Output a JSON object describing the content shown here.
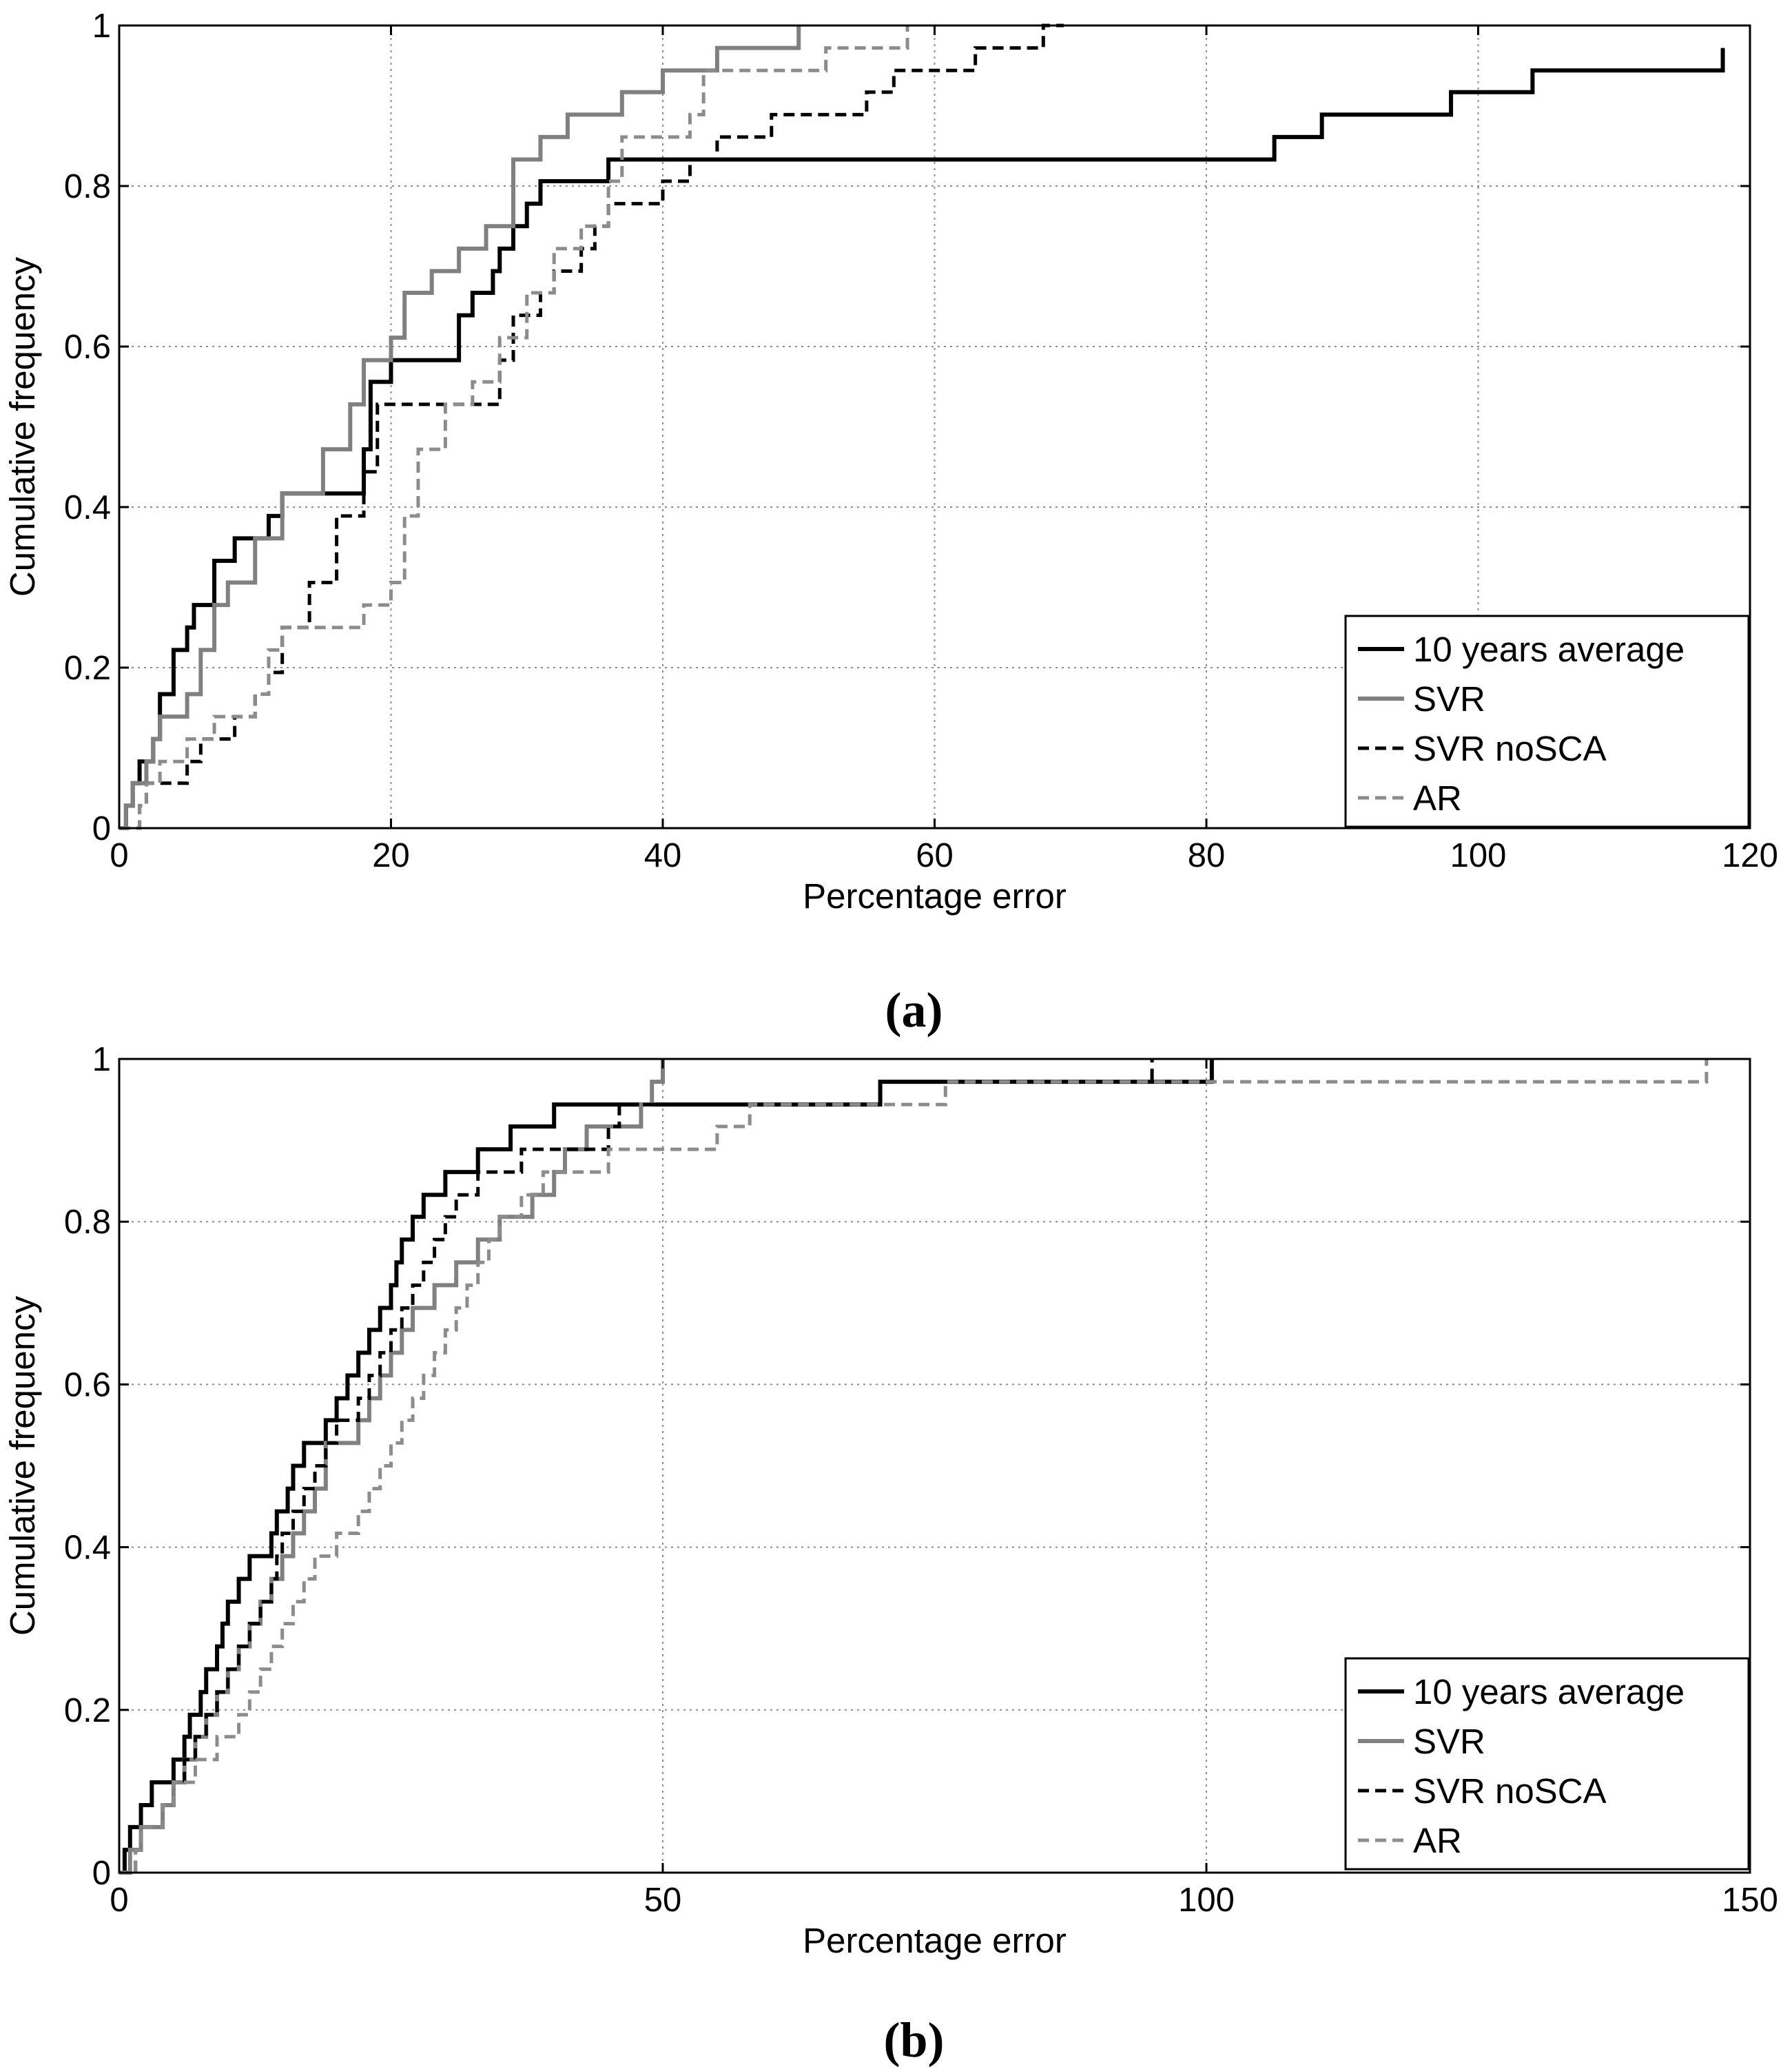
{
  "chart_data": [
    {
      "type": "line",
      "panel_label": "(a)",
      "xlabel": "Percentage error",
      "ylabel": "Cumulative frequency",
      "xlim": [
        0,
        120
      ],
      "ylim": [
        0,
        1
      ],
      "xticks": [
        0,
        20,
        40,
        60,
        80,
        100,
        120
      ],
      "yticks": [
        0,
        0.2,
        0.4,
        0.6,
        0.8,
        1
      ],
      "xtick_labels": [
        "0",
        "20",
        "40",
        "60",
        "80",
        "100",
        "120"
      ],
      "ytick_labels": [
        "0",
        "0.2",
        "0.4",
        "0.6",
        "0.8",
        "1"
      ],
      "grid": true,
      "legend_position": "bottom-right",
      "series": [
        {
          "name": "10 years average",
          "color": "#000000",
          "style": "solid",
          "x": [
            0.5,
            1,
            1.5,
            2.5,
            3,
            4,
            5,
            5.5,
            7,
            8.5,
            11,
            12,
            18,
            18.5,
            20,
            25,
            26,
            27.5,
            28,
            29,
            30,
            31,
            36,
            72.5,
            85,
            88.5,
            98,
            104,
            118
          ],
          "y": [
            0.028,
            0.056,
            0.083,
            0.111,
            0.167,
            0.222,
            0.25,
            0.278,
            0.333,
            0.361,
            0.389,
            0.417,
            0.472,
            0.556,
            0.583,
            0.639,
            0.667,
            0.694,
            0.722,
            0.75,
            0.778,
            0.806,
            0.833,
            0.833,
            0.861,
            0.889,
            0.917,
            0.944,
            0.972
          ]
        },
        {
          "name": "SVR",
          "color": "#808080",
          "style": "solid",
          "x": [
            0.5,
            1,
            2,
            2.5,
            3,
            5,
            6,
            7,
            8,
            10,
            12,
            15,
            17,
            18,
            20,
            21,
            23,
            25,
            27,
            29,
            31,
            33,
            37,
            40,
            44,
            50
          ],
          "y": [
            0.028,
            0.056,
            0.083,
            0.111,
            0.139,
            0.167,
            0.222,
            0.278,
            0.306,
            0.361,
            0.417,
            0.472,
            0.528,
            0.583,
            0.611,
            0.667,
            0.694,
            0.722,
            0.75,
            0.833,
            0.861,
            0.889,
            0.917,
            0.944,
            0.972,
            1.0
          ]
        },
        {
          "name": "SVR noSCA",
          "color": "#000000",
          "style": "dashed",
          "x": [
            1.5,
            2,
            5,
            6,
            8.5,
            10,
            11,
            12,
            14,
            16,
            18,
            19,
            28,
            29,
            31,
            32,
            34,
            35,
            36,
            40,
            42,
            44,
            48,
            55,
            57,
            63,
            68,
            69.5
          ],
          "y": [
            0.028,
            0.056,
            0.083,
            0.111,
            0.139,
            0.167,
            0.194,
            0.25,
            0.306,
            0.389,
            0.444,
            0.528,
            0.583,
            0.639,
            0.667,
            0.694,
            0.722,
            0.75,
            0.778,
            0.806,
            0.833,
            0.861,
            0.889,
            0.917,
            0.944,
            0.972,
            1.0,
            1.0
          ]
        },
        {
          "name": "AR",
          "color": "#8c8c8c",
          "style": "dashed",
          "x": [
            1.5,
            2,
            3,
            5,
            7,
            10,
            11,
            12,
            18,
            20,
            21,
            22,
            24,
            26,
            28,
            30,
            32,
            34,
            36,
            37,
            42,
            43,
            52,
            58
          ],
          "y": [
            0.028,
            0.056,
            0.083,
            0.111,
            0.139,
            0.167,
            0.222,
            0.25,
            0.278,
            0.306,
            0.389,
            0.472,
            0.528,
            0.556,
            0.611,
            0.667,
            0.722,
            0.75,
            0.806,
            0.861,
            0.889,
            0.944,
            0.972,
            1.0
          ]
        }
      ]
    },
    {
      "type": "line",
      "panel_label": "(b)",
      "xlabel": "Percentage error",
      "ylabel": "Cumulative frequency",
      "xlim": [
        0,
        150
      ],
      "ylim": [
        0,
        1
      ],
      "xticks": [
        0,
        50,
        100,
        150
      ],
      "yticks": [
        0,
        0.2,
        0.4,
        0.6,
        0.8,
        1
      ],
      "xtick_labels": [
        "0",
        "50",
        "100",
        "150"
      ],
      "ytick_labels": [
        "0",
        "0.2",
        "0.4",
        "0.6",
        "0.8",
        "1"
      ],
      "grid": true,
      "legend_position": "bottom-right",
      "series": [
        {
          "name": "10 years average",
          "color": "#000000",
          "style": "solid",
          "x": [
            0.5,
            1,
            2,
            3,
            5,
            6,
            6.5,
            7.5,
            8,
            9,
            9.5,
            10,
            11,
            12,
            14,
            14.5,
            15.5,
            16,
            17,
            19,
            20,
            21,
            22,
            23,
            24,
            25,
            25.5,
            26,
            27,
            28,
            29,
            30,
            31,
            32,
            33,
            34,
            36,
            38,
            40,
            42,
            45,
            70,
            100.5
          ],
          "y": [
            0.028,
            0.056,
            0.083,
            0.111,
            0.139,
            0.167,
            0.194,
            0.222,
            0.25,
            0.278,
            0.306,
            0.333,
            0.361,
            0.389,
            0.417,
            0.444,
            0.472,
            0.5,
            0.528,
            0.556,
            0.583,
            0.611,
            0.639,
            0.667,
            0.694,
            0.722,
            0.75,
            0.778,
            0.806,
            0.833,
            0.833,
            0.861,
            0.861,
            0.861,
            0.889,
            0.889,
            0.917,
            0.917,
            0.944,
            0.944,
            0.944,
            0.972,
            1.0
          ]
        },
        {
          "name": "SVR",
          "color": "#808080",
          "style": "solid",
          "x": [
            1,
            2,
            4,
            5,
            6,
            7,
            8,
            9,
            10,
            11,
            12,
            13,
            14,
            15,
            16,
            17,
            18,
            19,
            22,
            23,
            24,
            25,
            26,
            27,
            29,
            31,
            33,
            35,
            38,
            40,
            41,
            43,
            48,
            49,
            50
          ],
          "y": [
            0.028,
            0.056,
            0.083,
            0.111,
            0.139,
            0.167,
            0.194,
            0.222,
            0.25,
            0.278,
            0.306,
            0.333,
            0.361,
            0.389,
            0.417,
            0.444,
            0.472,
            0.528,
            0.556,
            0.583,
            0.611,
            0.639,
            0.667,
            0.694,
            0.722,
            0.75,
            0.778,
            0.806,
            0.833,
            0.861,
            0.889,
            0.917,
            0.944,
            0.972,
            1.0
          ]
        },
        {
          "name": "SVR noSCA",
          "color": "#000000",
          "style": "dashed",
          "x": [
            1.5,
            2,
            4,
            5,
            6,
            7,
            8,
            9,
            10,
            11,
            12,
            13,
            14,
            14.5,
            15,
            16,
            17,
            18,
            19,
            20,
            22,
            23,
            24,
            25,
            26,
            27,
            28,
            29,
            30,
            31,
            33,
            35,
            37,
            42,
            45,
            46,
            47,
            70,
            95
          ],
          "y": [
            0.028,
            0.056,
            0.083,
            0.111,
            0.139,
            0.167,
            0.194,
            0.222,
            0.25,
            0.278,
            0.306,
            0.333,
            0.361,
            0.389,
            0.417,
            0.444,
            0.472,
            0.5,
            0.528,
            0.556,
            0.583,
            0.611,
            0.639,
            0.667,
            0.694,
            0.722,
            0.75,
            0.778,
            0.806,
            0.833,
            0.861,
            0.861,
            0.889,
            0.889,
            0.917,
            0.944,
            0.944,
            0.972,
            1.0
          ]
        },
        {
          "name": "AR",
          "color": "#8c8c8c",
          "style": "dashed",
          "x": [
            1.5,
            2,
            4,
            5,
            7,
            9,
            11,
            12,
            13,
            14,
            15,
            16,
            17,
            18,
            20,
            22,
            23,
            24,
            25,
            26,
            27,
            28,
            29,
            30,
            31,
            32,
            33,
            34,
            35,
            37,
            39,
            42,
            45,
            48,
            50,
            55,
            58,
            68,
            76,
            146
          ],
          "y": [
            0.028,
            0.056,
            0.083,
            0.111,
            0.139,
            0.167,
            0.194,
            0.222,
            0.25,
            0.278,
            0.306,
            0.333,
            0.361,
            0.389,
            0.417,
            0.444,
            0.472,
            0.5,
            0.528,
            0.556,
            0.583,
            0.611,
            0.639,
            0.667,
            0.694,
            0.722,
            0.75,
            0.778,
            0.806,
            0.833,
            0.861,
            0.861,
            0.889,
            0.889,
            0.889,
            0.917,
            0.944,
            0.944,
            0.972,
            1.0
          ]
        }
      ]
    }
  ]
}
